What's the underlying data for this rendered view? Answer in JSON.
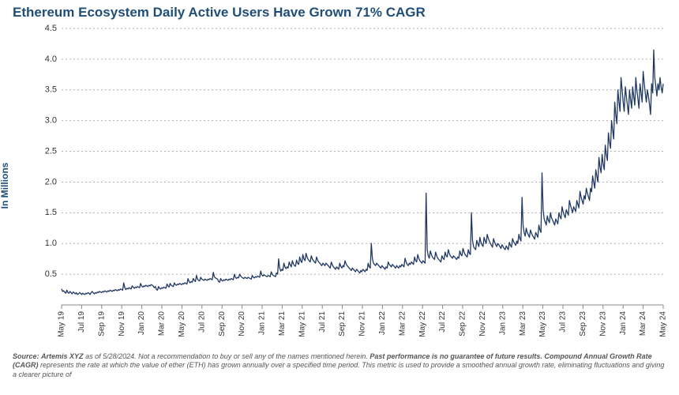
{
  "chart": {
    "type": "line",
    "title": "Ethereum Ecosystem Daily Active Users Have Grown 71% CAGR",
    "title_color": "#1f4e79",
    "title_fontsize": 17,
    "ylabel": "In Millions",
    "ylabel_fontsize": 12,
    "background_color": "#ffffff",
    "grid_color": "#b0b0b0",
    "line_color": "#203864",
    "line_width": 1.3,
    "ylim": [
      0,
      4.5
    ],
    "ytick_step": 0.5,
    "ytick_format": "0.0",
    "x_categories": [
      "May 19",
      "Jul 19",
      "Sep 19",
      "Nov 19",
      "Jan 20",
      "Mar 20",
      "May 20",
      "Jul 20",
      "Sep 20",
      "Nov 20",
      "Jan 21",
      "Mar 21",
      "May 21",
      "Jul 21",
      "Sep 21",
      "Nov 21",
      "Jan 22",
      "Mar 22",
      "May 22",
      "Jul 22",
      "Sep 22",
      "Nov 22",
      "Jan 23",
      "Mar 23",
      "May 23",
      "Jul 23",
      "Sep 23",
      "Nov 23",
      "Jan 24",
      "Mar 24",
      "May 24"
    ],
    "values": [
      0.26,
      0.22,
      0.23,
      0.21,
      0.19,
      0.24,
      0.2,
      0.19,
      0.22,
      0.2,
      0.18,
      0.21,
      0.2,
      0.18,
      0.2,
      0.17,
      0.18,
      0.2,
      0.19,
      0.17,
      0.19,
      0.18,
      0.17,
      0.19,
      0.18,
      0.2,
      0.19,
      0.17,
      0.2,
      0.22,
      0.2,
      0.18,
      0.2,
      0.19,
      0.21,
      0.2,
      0.22,
      0.21,
      0.2,
      0.22,
      0.21,
      0.23,
      0.22,
      0.21,
      0.23,
      0.22,
      0.24,
      0.23,
      0.22,
      0.24,
      0.23,
      0.25,
      0.24,
      0.23,
      0.25,
      0.24,
      0.26,
      0.25,
      0.24,
      0.36,
      0.28,
      0.25,
      0.27,
      0.26,
      0.28,
      0.27,
      0.26,
      0.31,
      0.29,
      0.27,
      0.29,
      0.28,
      0.3,
      0.29,
      0.28,
      0.35,
      0.31,
      0.29,
      0.31,
      0.3,
      0.32,
      0.31,
      0.3,
      0.32,
      0.31,
      0.33,
      0.32,
      0.31,
      0.28,
      0.3,
      0.25,
      0.24,
      0.3,
      0.27,
      0.26,
      0.28,
      0.27,
      0.29,
      0.28,
      0.27,
      0.34,
      0.31,
      0.29,
      0.35,
      0.32,
      0.31,
      0.3,
      0.36,
      0.33,
      0.32,
      0.34,
      0.33,
      0.35,
      0.34,
      0.33,
      0.35,
      0.34,
      0.36,
      0.35,
      0.34,
      0.43,
      0.38,
      0.36,
      0.38,
      0.37,
      0.43,
      0.4,
      0.38,
      0.48,
      0.42,
      0.4,
      0.39,
      0.45,
      0.42,
      0.41,
      0.4,
      0.42,
      0.41,
      0.4,
      0.42,
      0.41,
      0.43,
      0.42,
      0.41,
      0.53,
      0.46,
      0.44,
      0.43,
      0.42,
      0.38,
      0.37,
      0.43,
      0.4,
      0.39,
      0.41,
      0.4,
      0.42,
      0.41,
      0.4,
      0.42,
      0.41,
      0.43,
      0.42,
      0.41,
      0.5,
      0.45,
      0.43,
      0.45,
      0.44,
      0.5,
      0.47,
      0.45,
      0.44,
      0.43,
      0.45,
      0.44,
      0.43,
      0.45,
      0.44,
      0.43,
      0.42,
      0.48,
      0.45,
      0.44,
      0.46,
      0.45,
      0.47,
      0.46,
      0.45,
      0.55,
      0.49,
      0.47,
      0.49,
      0.48,
      0.47,
      0.46,
      0.48,
      0.47,
      0.46,
      0.54,
      0.5,
      0.48,
      0.47,
      0.46,
      0.52,
      0.5,
      0.75,
      0.6,
      0.55,
      0.58,
      0.56,
      0.68,
      0.62,
      0.59,
      0.62,
      0.6,
      0.7,
      0.65,
      0.62,
      0.72,
      0.67,
      0.64,
      0.63,
      0.73,
      0.68,
      0.66,
      0.78,
      0.72,
      0.69,
      0.82,
      0.75,
      0.72,
      0.84,
      0.78,
      0.74,
      0.72,
      0.7,
      0.8,
      0.75,
      0.72,
      0.7,
      0.68,
      0.78,
      0.73,
      0.7,
      0.68,
      0.66,
      0.64,
      0.68,
      0.66,
      0.64,
      0.68,
      0.66,
      0.64,
      0.62,
      0.6,
      0.7,
      0.65,
      0.62,
      0.6,
      0.58,
      0.62,
      0.6,
      0.58,
      0.68,
      0.63,
      0.6,
      0.64,
      0.62,
      0.72,
      0.67,
      0.64,
      0.62,
      0.6,
      0.58,
      0.56,
      0.6,
      0.58,
      0.56,
      0.54,
      0.58,
      0.56,
      0.54,
      0.52,
      0.56,
      0.54,
      0.58,
      0.56,
      0.54,
      0.58,
      0.56,
      0.68,
      0.62,
      0.6,
      1.0,
      0.75,
      0.68,
      0.66,
      0.64,
      0.68,
      0.66,
      0.64,
      0.62,
      0.6,
      0.64,
      0.62,
      0.6,
      0.58,
      0.62,
      0.6,
      0.7,
      0.66,
      0.64,
      0.62,
      0.66,
      0.64,
      0.62,
      0.6,
      0.64,
      0.62,
      0.6,
      0.64,
      0.62,
      0.66,
      0.64,
      0.62,
      0.76,
      0.7,
      0.66,
      0.64,
      0.68,
      0.66,
      0.7,
      0.68,
      0.66,
      0.78,
      0.72,
      0.7,
      0.82,
      0.76,
      0.72,
      0.7,
      0.68,
      0.72,
      0.7,
      0.68,
      1.82,
      0.9,
      0.8,
      0.76,
      0.88,
      0.82,
      0.78,
      0.76,
      0.74,
      0.86,
      0.8,
      0.76,
      0.74,
      0.72,
      0.7,
      0.8,
      0.76,
      0.74,
      0.86,
      0.8,
      0.78,
      0.9,
      0.84,
      0.8,
      0.78,
      0.76,
      0.8,
      0.78,
      0.76,
      0.74,
      0.78,
      0.76,
      0.88,
      0.82,
      0.8,
      0.92,
      0.86,
      0.82,
      0.8,
      0.78,
      0.9,
      0.84,
      0.82,
      1.5,
      1.05,
      0.95,
      0.92,
      0.9,
      1.05,
      1.0,
      0.95,
      1.1,
      1.02,
      0.98,
      0.95,
      1.1,
      1.04,
      1.0,
      1.15,
      1.08,
      1.04,
      1.0,
      0.97,
      0.94,
      1.08,
      1.02,
      0.98,
      0.95,
      1.0,
      0.98,
      0.95,
      0.92,
      0.98,
      0.95,
      0.92,
      0.9,
      0.96,
      0.93,
      0.9,
      1.02,
      0.97,
      0.94,
      1.08,
      1.03,
      1.0,
      0.97,
      1.04,
      1.0,
      1.15,
      1.08,
      1.04,
      1.75,
      1.3,
      1.18,
      1.12,
      1.25,
      1.18,
      1.14,
      1.1,
      1.22,
      1.17,
      1.13,
      1.1,
      1.07,
      1.18,
      1.14,
      1.1,
      1.3,
      1.22,
      1.18,
      2.15,
      1.55,
      1.4,
      1.35,
      1.3,
      1.45,
      1.38,
      1.34,
      1.5,
      1.42,
      1.38,
      1.34,
      1.3,
      1.4,
      1.36,
      1.32,
      1.5,
      1.44,
      1.4,
      1.6,
      1.52,
      1.46,
      1.42,
      1.55,
      1.5,
      1.46,
      1.7,
      1.62,
      1.56,
      1.5,
      1.6,
      1.56,
      1.52,
      1.7,
      1.64,
      1.58,
      1.85,
      1.76,
      1.7,
      1.64,
      1.78,
      1.72,
      1.9,
      1.82,
      1.76,
      1.7,
      1.9,
      1.84,
      2.1,
      2.0,
      1.9,
      2.2,
      2.1,
      2.0,
      2.4,
      2.25,
      2.15,
      2.45,
      2.3,
      2.2,
      2.6,
      2.45,
      2.35,
      2.8,
      2.65,
      2.55,
      3.0,
      2.85,
      2.7,
      3.3,
      3.1,
      2.95,
      3.5,
      3.3,
      3.15,
      3.7,
      3.5,
      3.3,
      3.15,
      3.55,
      3.4,
      3.25,
      3.1,
      3.5,
      3.35,
      3.2,
      3.55,
      3.4,
      3.25,
      3.7,
      3.5,
      3.35,
      3.2,
      3.6,
      3.45,
      3.3,
      3.8,
      3.6,
      3.45,
      3.3,
      3.5,
      3.4,
      3.25,
      3.1,
      3.6,
      3.45,
      4.15,
      3.7,
      3.55,
      3.4,
      3.6,
      3.5,
      3.7,
      3.55,
      3.45,
      3.6
    ]
  },
  "footnote": {
    "source_label": "Source:",
    "source_name": "Artemis XYZ",
    "date_text": "as of 5/28/2024.",
    "disclaimer_1": "Not a recommendation to buy or sell any of the names mentioned herein.",
    "bold_1": "Past performance is no guarantee of future results.",
    "bold_2": "Compound Annual Growth Rate (CAGR)",
    "disclaimer_2": "represents the rate at which the value of ether (ETH) has grown annually over a specified time period. This metric is used to provide a smoothed annual growth rate, eliminating fluctuations and giving a clearer picture of"
  }
}
